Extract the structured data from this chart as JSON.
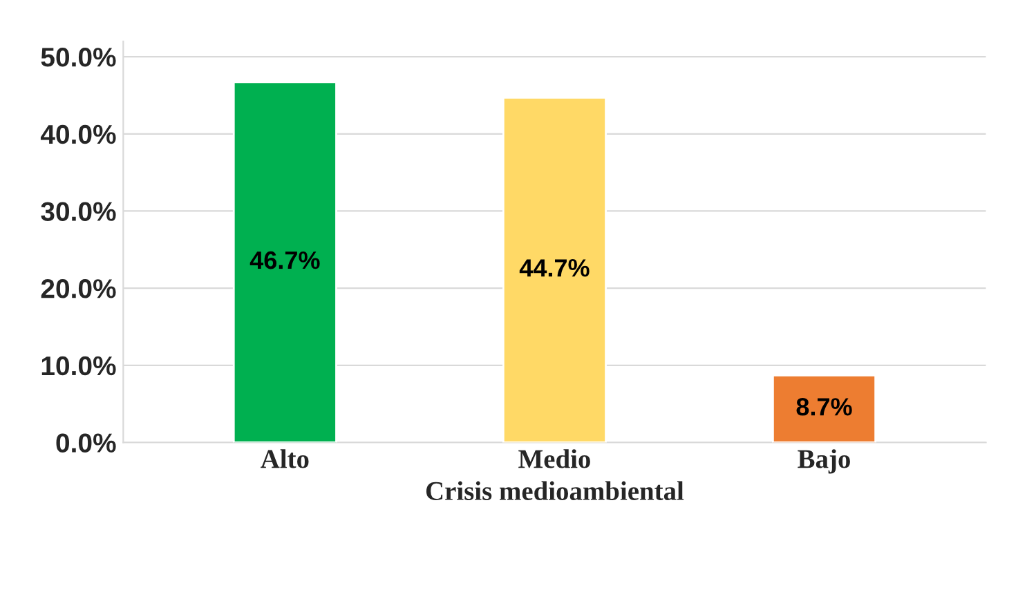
{
  "chart_data": {
    "type": "bar",
    "xlabel": "Crisis medioambiental",
    "categories": [
      "Alto",
      "Medio",
      "Bajo"
    ],
    "values": [
      46.7,
      44.7,
      8.7
    ],
    "colors": [
      "#00b050",
      "#ffd966",
      "#ed7d31"
    ],
    "value_labels": [
      "46.7%",
      "44.7%",
      "8.7%"
    ],
    "ylim": [
      0,
      52
    ],
    "yticks": [
      {
        "value": 0,
        "label": "0.0%"
      },
      {
        "value": 10,
        "label": "10.0%"
      },
      {
        "value": 20,
        "label": "20.0%"
      },
      {
        "value": 30,
        "label": "30.0%"
      },
      {
        "value": 40,
        "label": "40.0%"
      },
      {
        "value": 50,
        "label": "50.0%"
      }
    ],
    "grid": "y",
    "legend": false
  }
}
